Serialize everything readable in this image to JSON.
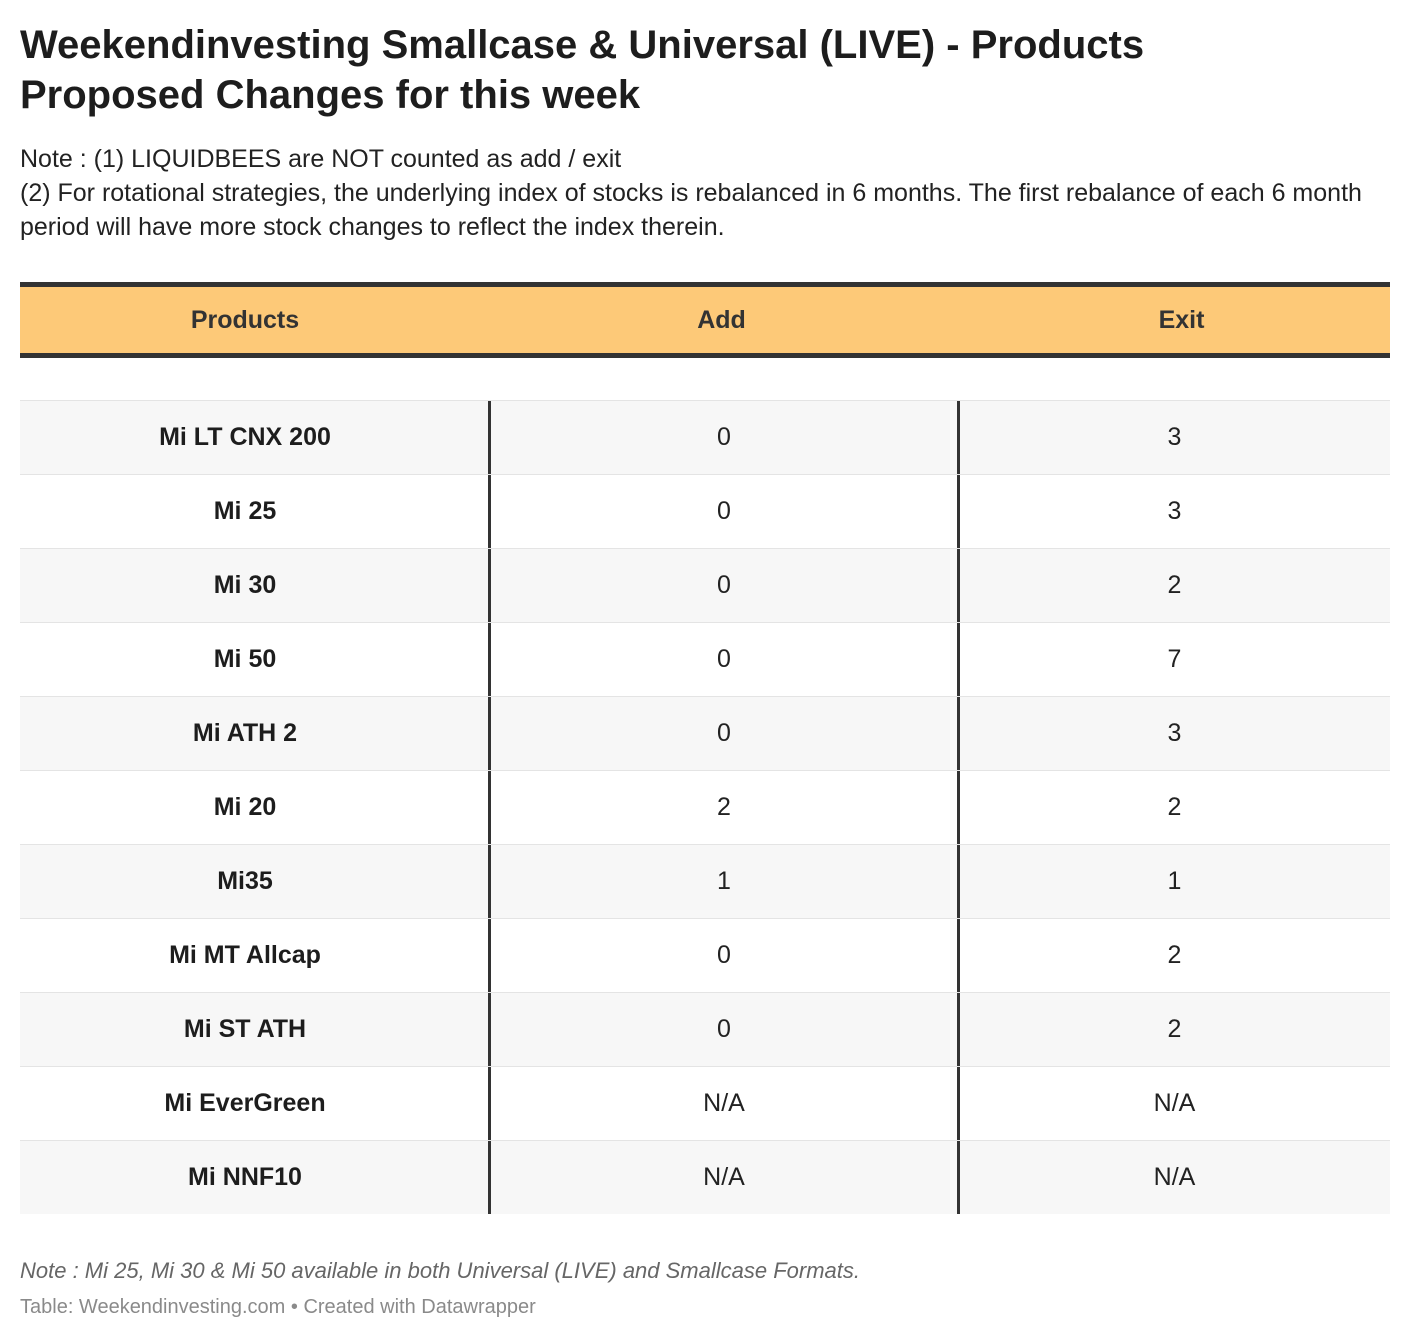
{
  "title": "Weekendinvesting Smallcase & Universal (LIVE) - Products Proposed Changes for this week",
  "notes": [
    "Note : (1) LIQUIDBEES are NOT counted as add / exit",
    "(2) For rotational strategies, the underlying index of stocks is rebalanced in 6 months. The first rebalance of each 6 month period will have more stock changes to reflect the index therein."
  ],
  "chart_data": {
    "type": "table",
    "columns": [
      "Products",
      "Add",
      "Exit"
    ],
    "rows": [
      {
        "product": "Mi LT CNX 200",
        "add": "0",
        "exit": "3"
      },
      {
        "product": "Mi 25",
        "add": "0",
        "exit": "3"
      },
      {
        "product": "Mi 30",
        "add": "0",
        "exit": "2"
      },
      {
        "product": "Mi 50",
        "add": "0",
        "exit": "7"
      },
      {
        "product": "Mi ATH 2",
        "add": "0",
        "exit": "3"
      },
      {
        "product": "Mi 20",
        "add": "2",
        "exit": "2"
      },
      {
        "product": "Mi35",
        "add": "1",
        "exit": "1"
      },
      {
        "product": "Mi MT Allcap",
        "add": "0",
        "exit": "2"
      },
      {
        "product": "Mi ST ATH",
        "add": "0",
        "exit": "2"
      },
      {
        "product": "Mi EverGreen",
        "add": "N/A",
        "exit": "N/A"
      },
      {
        "product": "Mi NNF10",
        "add": "N/A",
        "exit": "N/A"
      }
    ]
  },
  "footnote": "Note : Mi 25, Mi 30 & Mi 50 available in both Universal (LIVE) and Smallcase Formats.",
  "credits": "Table: Weekendinvesting.com • Created with Datawrapper",
  "colors": {
    "header_bg": "#fdc978",
    "rule": "#333333",
    "stripe": "#f7f7f7"
  }
}
